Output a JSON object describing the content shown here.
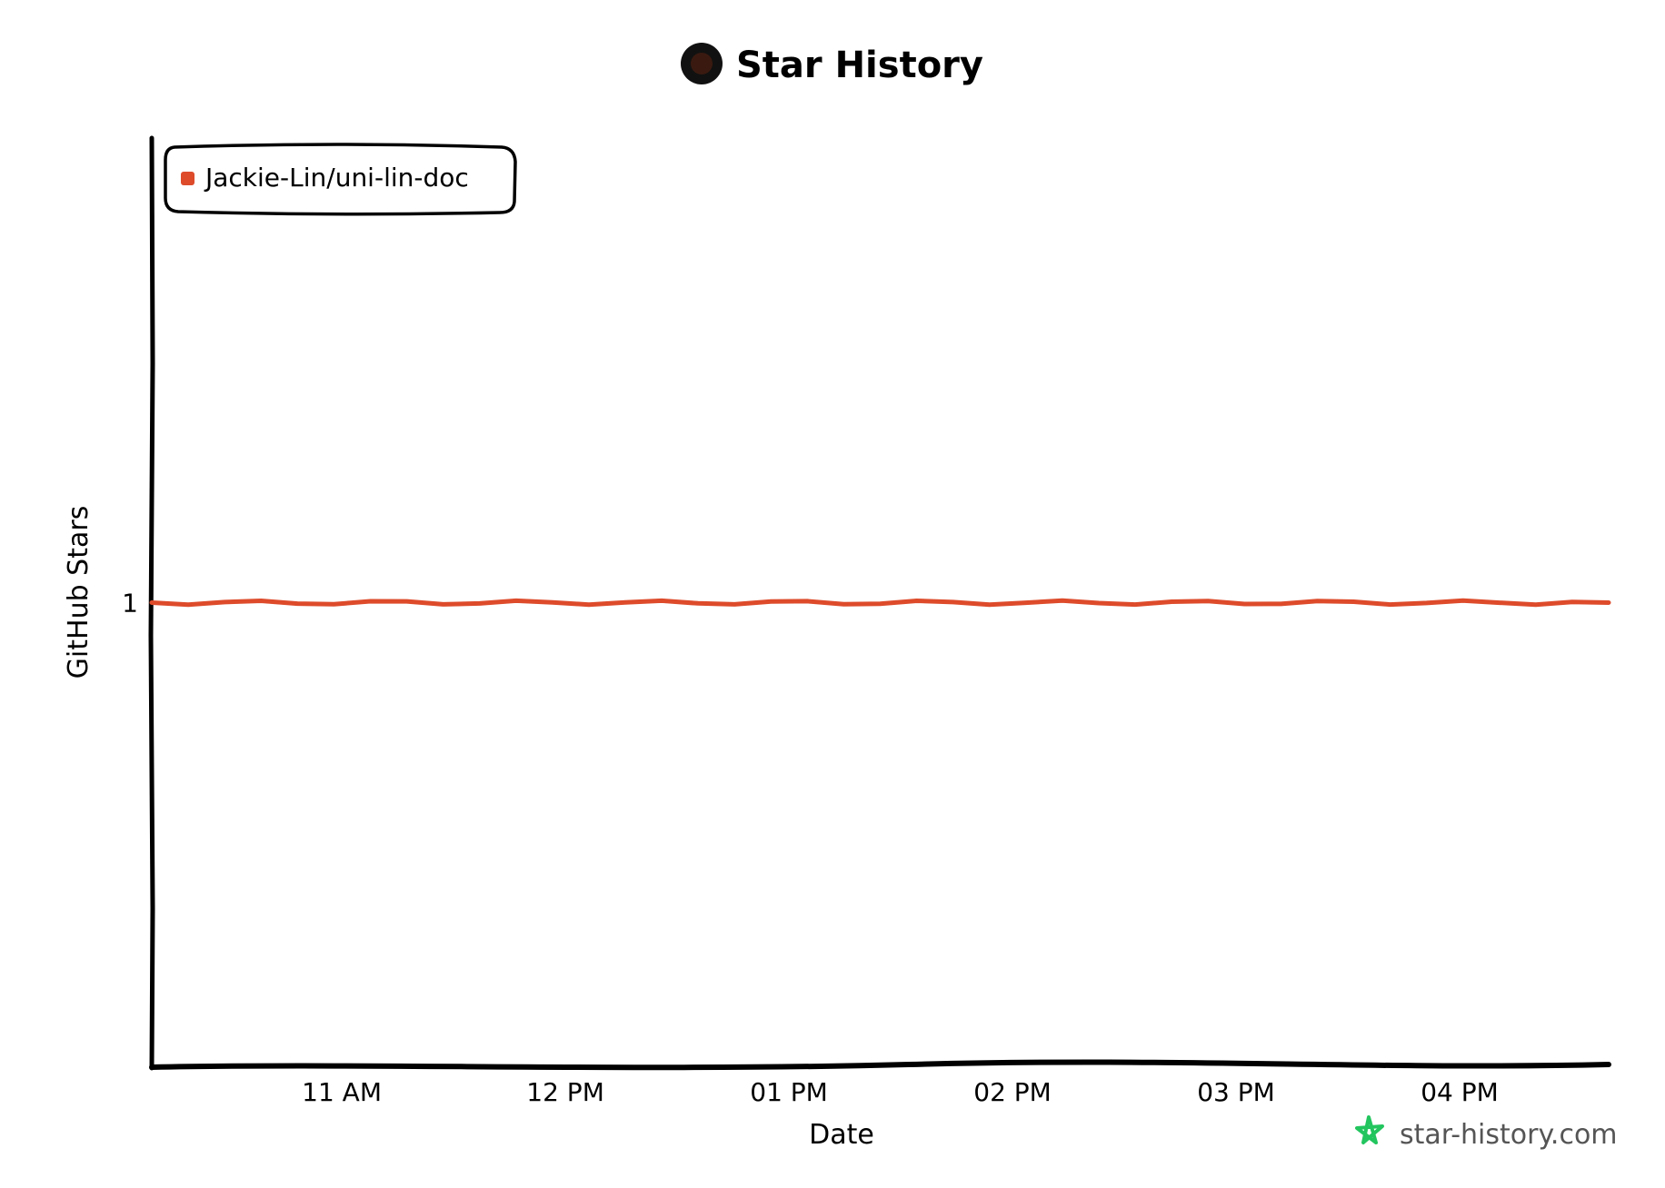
{
  "chart_data": {
    "type": "line",
    "title": "Star History",
    "xlabel": "Date",
    "ylabel": "GitHub Stars",
    "x_ticks": [
      "11 AM",
      "12 PM",
      "01 PM",
      "02 PM",
      "03 PM",
      "04 PM"
    ],
    "y_ticks": [
      "1"
    ],
    "ylim": [
      0,
      2
    ],
    "series": [
      {
        "name": "Jackie-Lin/uni-lin-doc",
        "color": "#dd4b2b",
        "x": [
          "10:09 AM",
          "04:40 PM"
        ],
        "values": [
          1,
          1
        ]
      }
    ],
    "legend_position": "top-left",
    "grid": false
  },
  "watermark": {
    "text": "star-history.com",
    "icon": "star-icon",
    "icon_color": "#22c55e"
  },
  "title_icon": "avatar-icon"
}
